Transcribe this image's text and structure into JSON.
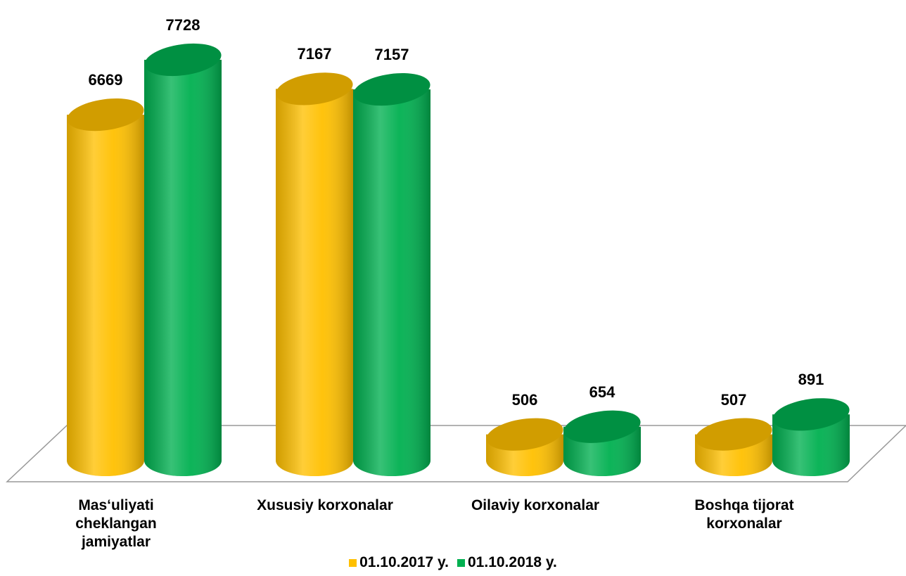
{
  "chart_data": {
    "type": "bar",
    "categories": [
      "Mas‘uliyati cheklangan jamiyatlar",
      "Xususiy korxonalar",
      "Oilaviy korxonalar",
      "Boshqa tijorat korxonalar"
    ],
    "series": [
      {
        "name": "01.10.2017 y.",
        "color": "#FFC000",
        "values": [
          6669,
          7167,
          506,
          507
        ]
      },
      {
        "name": "01.10.2018 y.",
        "color": "#00B050",
        "values": [
          7728,
          7157,
          654,
          891
        ]
      }
    ],
    "legend": "bottom"
  }
}
